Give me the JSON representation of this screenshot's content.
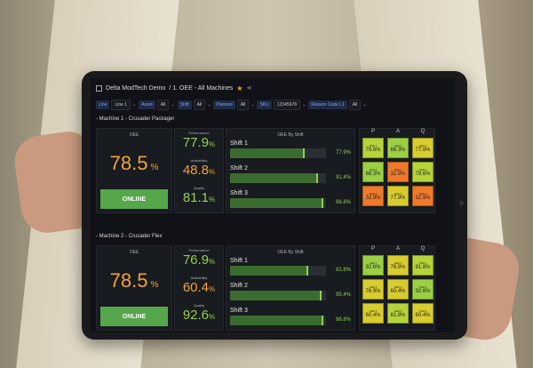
{
  "dashboard": {
    "title": "Delta ModTech Demo",
    "page": "/ 1. OEE - All Machines"
  },
  "filters": [
    {
      "label": "Line",
      "value": "Line 1"
    },
    {
      "label": "Asset",
      "value": "All"
    },
    {
      "label": "Shift",
      "value": "All"
    },
    {
      "label": "Planned",
      "value": "All"
    },
    {
      "label": "SKU",
      "value": "12345678"
    },
    {
      "label": "Reason Code L1",
      "value": "All"
    }
  ],
  "labels": {
    "oee": "OEE",
    "performance": "Performance",
    "availability": "Availability",
    "quality": "Quality",
    "oee_by_shift": "OEE By Shift",
    "p": "P",
    "a": "A",
    "q": "Q",
    "online": "ONLINE"
  },
  "machines": [
    {
      "title": "- Machine 1 - Crusader Packager",
      "oee": "78.5",
      "performance": "77.9",
      "availability": "48.8",
      "quality": "81.1",
      "shifts": [
        {
          "name": "Shift 1",
          "value": 77.9,
          "text": "77.9%"
        },
        {
          "name": "Shift 2",
          "value": 91.4,
          "text": "91.4%"
        },
        {
          "name": "Shift 3",
          "value": 96.8,
          "text": "96.8%"
        }
      ],
      "grid": [
        [
          {
            "l": "Shift 1",
            "v": "79.6%",
            "c": "c-lime"
          },
          {
            "l": "Shift 1",
            "v": "88.3%",
            "c": "c-green"
          },
          {
            "l": "Shift 1",
            "v": "77.9%",
            "c": "c-yellow"
          }
        ],
        [
          {
            "l": "Shift 2",
            "v": "88.3%",
            "c": "c-green"
          },
          {
            "l": "Shift 2",
            "v": "32.9%",
            "c": "c-orange"
          },
          {
            "l": "Shift 2",
            "v": "79.6%",
            "c": "c-lime"
          }
        ],
        [
          {
            "l": "Shift 3",
            "v": "32.9%",
            "c": "c-orange"
          },
          {
            "l": "Shift 3",
            "v": "77.9%",
            "c": "c-yellow"
          },
          {
            "l": "Shift 3",
            "v": "32.9%",
            "c": "c-orange"
          }
        ]
      ]
    },
    {
      "title": "- Machine 2 - Crusader Flex",
      "oee": "78.5",
      "performance": "76.9",
      "availability": "60.4",
      "quality": "92.6",
      "shifts": [
        {
          "name": "Shift 1",
          "value": 81.8,
          "text": "81.8%"
        },
        {
          "name": "Shift 2",
          "value": 95.4,
          "text": "95.4%"
        },
        {
          "name": "Shift 3",
          "value": 96.8,
          "text": "96.8%"
        }
      ],
      "grid": [
        [
          {
            "l": "Shift 1",
            "v": "92.6%",
            "c": "c-green"
          },
          {
            "l": "Shift 1",
            "v": "76.9%",
            "c": "c-yellow"
          },
          {
            "l": "Shift 1",
            "v": "81.8%",
            "c": "c-lime"
          }
        ],
        [
          {
            "l": "Shift 2",
            "v": "76.9%",
            "c": "c-yellow"
          },
          {
            "l": "Shift 2",
            "v": "60.4%",
            "c": "c-yellow"
          },
          {
            "l": "Shift 2",
            "v": "92.6%",
            "c": "c-green"
          }
        ],
        [
          {
            "l": "Shift 3",
            "v": "60.4%",
            "c": "c-yellow"
          },
          {
            "l": "Shift 3",
            "v": "81.8%",
            "c": "c-lime"
          },
          {
            "l": "Shift 3",
            "v": "60.4%",
            "c": "c-yellow"
          }
        ]
      ]
    }
  ],
  "colors": {
    "oee": "#f2a33a",
    "performance": "#8fd14f",
    "availability": "#f2a33a",
    "quality": "#8fd14f",
    "online": "#56a64b"
  }
}
